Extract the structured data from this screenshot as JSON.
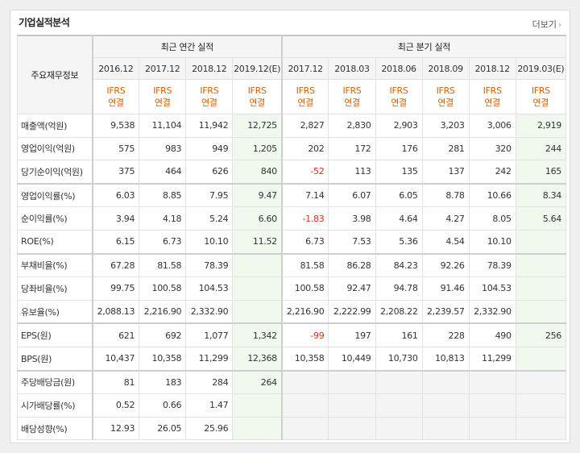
{
  "header": {
    "title": "기업실적분석",
    "more_label": "더보기",
    "more_icon": "chevron-right-icon"
  },
  "table": {
    "label_header": "주요재무정보",
    "annual_header": "최근 연간 실적",
    "quarter_header": "최근 분기 실적",
    "annual_periods": [
      "2016.12",
      "2017.12",
      "2018.12",
      "2019.12(E)"
    ],
    "quarter_periods": [
      "2017.12",
      "2018.03",
      "2018.06",
      "2018.09",
      "2018.12",
      "2019.03(E)"
    ],
    "ifrs_top": "IFRS",
    "ifrs_bottom": "연결",
    "rows": [
      {
        "label": "매출액(억원)",
        "values": [
          "9,538",
          "11,104",
          "11,942",
          "12,725",
          "2,827",
          "2,830",
          "2,903",
          "3,203",
          "3,006",
          "2,919"
        ]
      },
      {
        "label": "영업이익(억원)",
        "values": [
          "575",
          "983",
          "949",
          "1,205",
          "202",
          "172",
          "176",
          "281",
          "320",
          "244"
        ]
      },
      {
        "label": "당기순이익(억원)",
        "values": [
          "375",
          "464",
          "626",
          "840",
          "-52",
          "113",
          "135",
          "137",
          "242",
          "165"
        ]
      },
      {
        "label": "영업이익률(%)",
        "values": [
          "6.03",
          "8.85",
          "7.95",
          "9.47",
          "7.14",
          "6.07",
          "6.05",
          "8.78",
          "10.66",
          "8.34"
        ]
      },
      {
        "label": "순이익률(%)",
        "values": [
          "3.94",
          "4.18",
          "5.24",
          "6.60",
          "-1.83",
          "3.98",
          "4.64",
          "4.27",
          "8.05",
          "5.64"
        ]
      },
      {
        "label": "ROE(%)",
        "values": [
          "6.15",
          "6.73",
          "10.10",
          "11.52",
          "6.73",
          "7.53",
          "5.36",
          "4.54",
          "10.10",
          ""
        ]
      },
      {
        "label": "부채비율(%)",
        "values": [
          "67.28",
          "81.58",
          "78.39",
          "",
          "81.58",
          "86.28",
          "84.23",
          "92.26",
          "78.39",
          ""
        ]
      },
      {
        "label": "당좌비율(%)",
        "values": [
          "99.75",
          "100.58",
          "104.53",
          "",
          "100.58",
          "92.47",
          "94.78",
          "91.46",
          "104.53",
          ""
        ]
      },
      {
        "label": "유보율(%)",
        "values": [
          "2,088.13",
          "2,216.90",
          "2,332.90",
          "",
          "2,216.90",
          "2,222.99",
          "2,208.22",
          "2,239.57",
          "2,332.90",
          ""
        ]
      },
      {
        "label": "EPS(원)",
        "values": [
          "621",
          "692",
          "1,077",
          "1,342",
          "-99",
          "197",
          "161",
          "228",
          "490",
          "256"
        ]
      },
      {
        "label": "BPS(원)",
        "values": [
          "10,437",
          "10,358",
          "11,299",
          "12,368",
          "10,358",
          "10,449",
          "10,730",
          "10,813",
          "11,299",
          ""
        ]
      },
      {
        "label": "주당배당금(원)",
        "values": [
          "81",
          "183",
          "284",
          "264",
          "",
          "",
          "",
          "",
          "",
          ""
        ]
      },
      {
        "label": "시가배당률(%)",
        "values": [
          "0.52",
          "0.66",
          "1.47",
          "",
          "",
          "",
          "",
          "",
          "",
          ""
        ]
      },
      {
        "label": "배당성향(%)",
        "values": [
          "12.93",
          "26.05",
          "25.96",
          "",
          "",
          "",
          "",
          "",
          "",
          ""
        ]
      }
    ],
    "group_start_rows": [
      3,
      6,
      9,
      11
    ],
    "blank_quarter_rows": [
      11,
      12,
      13
    ],
    "colors": {
      "negative": "#d7301f",
      "ifrs": "#d85e00",
      "estimate_bg": "#f1f8ee"
    }
  }
}
